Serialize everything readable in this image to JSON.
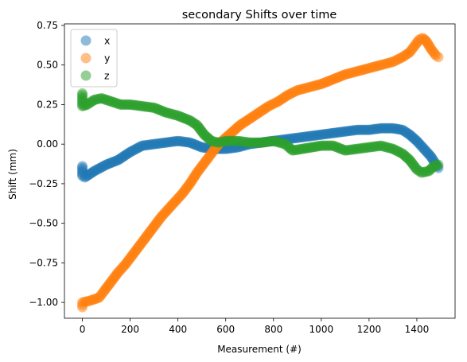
{
  "chart_data": {
    "type": "scatter",
    "title": "secondary Shifts over time",
    "xlabel": "Measurement (#)",
    "ylabel": "Shift (mm)",
    "xlim": [
      -75,
      1560
    ],
    "ylim": [
      -1.1,
      0.76
    ],
    "xticks": [
      0,
      200,
      400,
      600,
      800,
      1000,
      1200,
      1400
    ],
    "yticks": [
      -1.0,
      -0.75,
      -0.5,
      -0.25,
      0.0,
      0.25,
      0.5,
      0.75
    ],
    "ytick_labels": [
      "−1.00",
      "−0.75",
      "−0.50",
      "−0.25",
      "0.00",
      "0.25",
      "0.50",
      "0.75"
    ],
    "legend_position": "upper-left",
    "grid": false,
    "series": [
      {
        "name": "x",
        "color": "#1f77b4",
        "points": [
          [
            0,
            -0.14
          ],
          [
            0,
            -0.2
          ],
          [
            10,
            -0.21
          ],
          [
            50,
            -0.17
          ],
          [
            100,
            -0.13
          ],
          [
            150,
            -0.1
          ],
          [
            200,
            -0.05
          ],
          [
            250,
            -0.01
          ],
          [
            300,
            0.0
          ],
          [
            350,
            0.01
          ],
          [
            400,
            0.02
          ],
          [
            450,
            0.01
          ],
          [
            500,
            -0.02
          ],
          [
            550,
            -0.03
          ],
          [
            600,
            -0.03
          ],
          [
            650,
            -0.02
          ],
          [
            700,
            0.0
          ],
          [
            750,
            0.01
          ],
          [
            800,
            0.02
          ],
          [
            850,
            0.03
          ],
          [
            900,
            0.04
          ],
          [
            950,
            0.05
          ],
          [
            1000,
            0.06
          ],
          [
            1050,
            0.07
          ],
          [
            1100,
            0.08
          ],
          [
            1150,
            0.09
          ],
          [
            1200,
            0.09
          ],
          [
            1250,
            0.1
          ],
          [
            1300,
            0.1
          ],
          [
            1340,
            0.09
          ],
          [
            1370,
            0.06
          ],
          [
            1400,
            0.02
          ],
          [
            1430,
            -0.03
          ],
          [
            1460,
            -0.08
          ],
          [
            1480,
            -0.13
          ],
          [
            1490,
            -0.15
          ]
        ]
      },
      {
        "name": "y",
        "color": "#ff7f0e",
        "points": [
          [
            0,
            -1.03
          ],
          [
            0,
            -1.0
          ],
          [
            30,
            -0.99
          ],
          [
            70,
            -0.97
          ],
          [
            90,
            -0.93
          ],
          [
            120,
            -0.87
          ],
          [
            150,
            -0.81
          ],
          [
            180,
            -0.76
          ],
          [
            210,
            -0.7
          ],
          [
            240,
            -0.64
          ],
          [
            270,
            -0.58
          ],
          [
            300,
            -0.52
          ],
          [
            330,
            -0.46
          ],
          [
            360,
            -0.41
          ],
          [
            390,
            -0.36
          ],
          [
            420,
            -0.31
          ],
          [
            450,
            -0.25
          ],
          [
            480,
            -0.18
          ],
          [
            510,
            -0.12
          ],
          [
            540,
            -0.06
          ],
          [
            570,
            0.0
          ],
          [
            600,
            0.04
          ],
          [
            630,
            0.08
          ],
          [
            660,
            0.12
          ],
          [
            700,
            0.16
          ],
          [
            740,
            0.2
          ],
          [
            780,
            0.24
          ],
          [
            820,
            0.27
          ],
          [
            860,
            0.31
          ],
          [
            900,
            0.34
          ],
          [
            950,
            0.36
          ],
          [
            1000,
            0.38
          ],
          [
            1050,
            0.41
          ],
          [
            1100,
            0.44
          ],
          [
            1150,
            0.46
          ],
          [
            1200,
            0.48
          ],
          [
            1250,
            0.5
          ],
          [
            1300,
            0.52
          ],
          [
            1340,
            0.55
          ],
          [
            1370,
            0.58
          ],
          [
            1390,
            0.62
          ],
          [
            1410,
            0.66
          ],
          [
            1425,
            0.67
          ],
          [
            1440,
            0.65
          ],
          [
            1460,
            0.6
          ],
          [
            1480,
            0.56
          ],
          [
            1490,
            0.55
          ]
        ]
      },
      {
        "name": "z",
        "color": "#2ca02c",
        "points": [
          [
            0,
            0.32
          ],
          [
            0,
            0.24
          ],
          [
            20,
            0.25
          ],
          [
            50,
            0.28
          ],
          [
            80,
            0.29
          ],
          [
            120,
            0.27
          ],
          [
            160,
            0.25
          ],
          [
            200,
            0.25
          ],
          [
            250,
            0.24
          ],
          [
            300,
            0.23
          ],
          [
            350,
            0.2
          ],
          [
            400,
            0.18
          ],
          [
            450,
            0.15
          ],
          [
            480,
            0.12
          ],
          [
            510,
            0.06
          ],
          [
            540,
            0.02
          ],
          [
            570,
            0.01
          ],
          [
            600,
            0.02
          ],
          [
            650,
            0.02
          ],
          [
            700,
            0.01
          ],
          [
            750,
            0.01
          ],
          [
            800,
            0.02
          ],
          [
            850,
            0.0
          ],
          [
            880,
            -0.04
          ],
          [
            920,
            -0.03
          ],
          [
            960,
            -0.02
          ],
          [
            1000,
            -0.01
          ],
          [
            1050,
            -0.01
          ],
          [
            1100,
            -0.04
          ],
          [
            1150,
            -0.03
          ],
          [
            1200,
            -0.02
          ],
          [
            1250,
            -0.01
          ],
          [
            1300,
            -0.03
          ],
          [
            1340,
            -0.06
          ],
          [
            1370,
            -0.1
          ],
          [
            1400,
            -0.16
          ],
          [
            1420,
            -0.18
          ],
          [
            1450,
            -0.17
          ],
          [
            1470,
            -0.14
          ],
          [
            1490,
            -0.13
          ]
        ]
      }
    ]
  }
}
